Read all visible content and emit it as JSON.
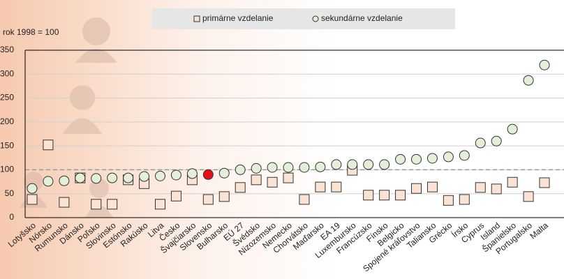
{
  "chart_data": {
    "type": "scatter",
    "y_axis_note": "rok 1998 = 100",
    "categories": [
      "Lotyšsko",
      "Nórsko",
      "Rumunsko",
      "Dánsko",
      "Poľsko",
      "Slovinsko",
      "Estónsko",
      "Rakúsko",
      "Litva",
      "Česko",
      "Švajčiarsko",
      "Slovensko",
      "Bulharsko",
      "EÚ 27",
      "Švédsko",
      "Nizozemsko",
      "Nemecko",
      "Chorvátsko",
      "Maďarsko",
      "EA 19",
      "Luxembursko",
      "Francúzsko",
      "Fínsko",
      "Belgicko",
      "Spojené kráľovstvo",
      "Taliansko",
      "Grécko",
      "Írsko",
      "Cyprus",
      "Island",
      "Španielsko",
      "Portugalsko",
      "Malta"
    ],
    "series": [
      {
        "name": "primárne vzdelanie",
        "marker": "square",
        "color": "#fbe3d3",
        "values": [
          38,
          152,
          32,
          83,
          28,
          28,
          79,
          71,
          28,
          45,
          79,
          38,
          44,
          63,
          79,
          74,
          83,
          38,
          64,
          64,
          99,
          47,
          47,
          47,
          61,
          64,
          36,
          38,
          63,
          60,
          74,
          44,
          73
        ]
      },
      {
        "name": "sekundárne vzdelanie",
        "marker": "circle",
        "color": "#e3efd8",
        "values": [
          61,
          76,
          77,
          83,
          82,
          83,
          83,
          86,
          87,
          89,
          92,
          90,
          93,
          100,
          103,
          105,
          105,
          105,
          106,
          111,
          111,
          111,
          111,
          122,
          122,
          124,
          127,
          130,
          156,
          160,
          185,
          287,
          319
        ],
        "highlight": {
          "category": "Slovensko",
          "color": "#e3101a"
        }
      }
    ],
    "ylim": [
      0,
      350
    ],
    "yticks": [
      0,
      50,
      100,
      150,
      200,
      250,
      300,
      350
    ],
    "grid": true,
    "reference_line": 100,
    "legend": "top"
  }
}
